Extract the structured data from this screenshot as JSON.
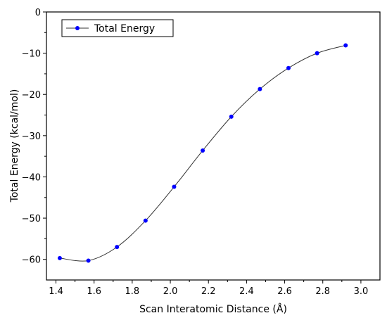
{
  "chart_data": {
    "type": "line",
    "title": "",
    "xlabel": "Scan Interatomic Distance (Å)",
    "ylabel": "Total Energy (kcal/mol)",
    "xlim": [
      1.35,
      3.1
    ],
    "ylim": [
      -65,
      0
    ],
    "xticks": [
      1.4,
      1.6,
      1.8,
      2.0,
      2.2,
      2.4,
      2.6,
      2.8,
      3.0
    ],
    "xtick_labels": [
      "1.4",
      "1.6",
      "1.8",
      "2.0",
      "2.2",
      "2.4",
      "2.6",
      "2.8",
      "3.0"
    ],
    "yticks": [
      0,
      -10,
      -20,
      -30,
      -40,
      -50,
      -60
    ],
    "ytick_labels": [
      "0",
      "−10",
      "−20",
      "−30",
      "−40",
      "−50",
      "−60"
    ],
    "grid": false,
    "legend_position": "top-left",
    "series": [
      {
        "name": "Total Energy",
        "line_color": "#333333",
        "marker_color": "#0000ff",
        "x": [
          1.42,
          1.57,
          1.72,
          1.87,
          2.02,
          2.17,
          2.32,
          2.47,
          2.62,
          2.77,
          2.92
        ],
        "y": [
          -59.7,
          -60.3,
          -57.0,
          -50.6,
          -42.4,
          -33.6,
          -25.4,
          -18.7,
          -13.6,
          -10.0,
          -8.1
        ]
      }
    ]
  }
}
